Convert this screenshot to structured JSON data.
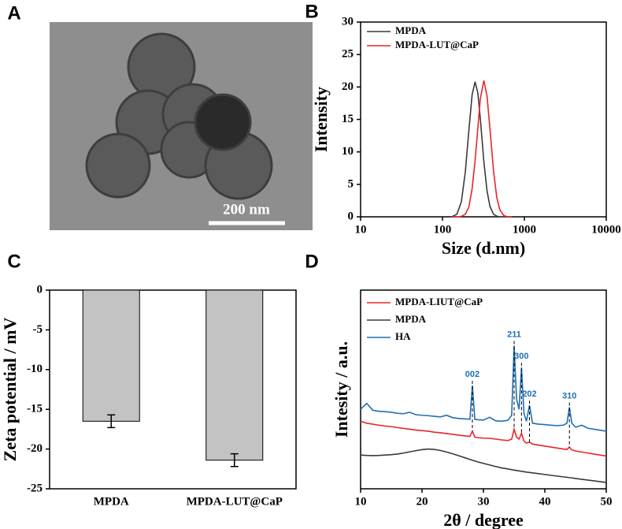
{
  "chart_data": [
    {
      "type": "image",
      "panel": "A",
      "scale_bar": "200 nm"
    },
    {
      "type": "line",
      "panel": "B",
      "xlabel": "Size (d.nm)",
      "ylabel": "Intensity",
      "xscale": "log",
      "xlim": [
        10,
        10000
      ],
      "xticks": [
        10,
        100,
        1000,
        10000
      ],
      "ylim": [
        0,
        30
      ],
      "yticks": [
        0,
        5,
        10,
        15,
        20,
        25,
        30
      ],
      "legend": "upper left",
      "x": [
        130,
        150,
        170,
        190,
        210,
        230,
        250,
        270,
        290,
        320,
        350,
        380,
        420,
        460,
        500,
        560,
        620,
        700
      ],
      "series": [
        {
          "name": "MPDA",
          "color": "#3a3a3a",
          "values": [
            0,
            0.4,
            2.3,
            6.9,
            13.3,
            18.8,
            20.8,
            19.1,
            15.1,
            8.5,
            4.0,
            1.6,
            0.4,
            0.1,
            0,
            0,
            0,
            0
          ]
        },
        {
          "name": "MPDA-LUT@CaP",
          "color": "#e8252a",
          "values": [
            0,
            0,
            0.06,
            0.4,
            1.5,
            4.3,
            8.6,
            13.6,
            18.2,
            21.0,
            18.6,
            13.5,
            7.1,
            3.0,
            1.1,
            0.2,
            0,
            0
          ]
        }
      ]
    },
    {
      "type": "bar",
      "panel": "C",
      "ylabel": "Zeta potential / mV",
      "categories": [
        "MPDA",
        "MPDA-LUT@CaP"
      ],
      "values": [
        -16.5,
        -21.4
      ],
      "errors": [
        0.8,
        0.8
      ],
      "color": "#c3c3c3",
      "ylim": [
        -25,
        0
      ],
      "yticks": [
        0,
        -5,
        -10,
        -15,
        -20,
        -25
      ]
    },
    {
      "type": "line",
      "panel": "D",
      "xlabel": "2θ / degree",
      "ylabel": "Intesity / a.u.",
      "xlim": [
        10,
        50
      ],
      "xticks": [
        10,
        20,
        30,
        40,
        50
      ],
      "ylim": [
        0,
        100
      ],
      "legend": "upper left",
      "x": [
        10,
        11,
        12,
        13,
        14,
        15,
        16,
        17,
        18,
        19,
        20,
        21,
        22,
        23,
        24,
        25,
        26,
        27,
        27.8,
        28.2,
        28.6,
        29,
        30,
        31,
        32,
        33,
        34,
        34.6,
        35,
        35.4,
        35.8,
        36.2,
        36.6,
        37,
        37.5,
        38,
        39,
        40,
        41,
        42,
        43,
        43.6,
        44,
        44.4,
        45,
        46,
        47,
        48,
        49,
        50
      ],
      "series": [
        {
          "name": "MPDA-LIUT@CaP",
          "color": "#e8252a",
          "values": [
            34,
            33,
            32.5,
            32,
            31.6,
            31.3,
            30.8,
            30.4,
            30,
            29.6,
            29.3,
            29,
            28.5,
            28.2,
            27.8,
            27.4,
            27,
            26.6,
            26.4,
            29,
            26,
            25.8,
            25.5,
            25.4,
            25,
            24.6,
            24.3,
            25,
            30,
            26,
            25,
            28,
            24,
            23,
            23.5,
            22.5,
            22,
            21.5,
            21,
            20.5,
            20,
            19.8,
            21,
            19.6,
            19,
            18.5,
            18,
            17.5,
            17,
            16.5
          ]
        },
        {
          "name": "MPDA",
          "color": "#3a3a3a",
          "values": [
            17,
            16.8,
            16.7,
            16.8,
            17,
            17.2,
            17.5,
            18,
            18.6,
            19.2,
            19.7,
            20,
            19.8,
            19.3,
            18.5,
            17.6,
            16.6,
            15.6,
            14.8,
            14.4,
            14,
            13.6,
            12.8,
            12,
            11.2,
            10.5,
            10,
            9.6,
            9.4,
            9.2,
            9,
            8.8,
            8.6,
            8.4,
            8.2,
            8,
            7.6,
            7.2,
            6.8,
            6.4,
            6,
            5.8,
            5.6,
            5.5,
            5.2,
            4.8,
            4.4,
            4,
            3.6,
            3.2
          ]
        },
        {
          "name": "HA",
          "color": "#1f6fb4",
          "values": [
            40,
            43,
            39.5,
            39,
            38.8,
            38.5,
            38,
            37.8,
            38.5,
            37.3,
            37,
            36.8,
            36.5,
            36.2,
            37,
            35.8,
            35.4,
            35.2,
            35,
            52,
            35,
            34.8,
            34.6,
            36,
            34.2,
            34,
            34.5,
            37,
            72,
            45,
            40,
            61,
            38,
            34,
            42,
            33,
            32.5,
            32.3,
            32,
            31.8,
            32,
            33,
            41,
            33,
            31,
            32,
            30.5,
            30,
            29.5,
            29
          ]
        }
      ],
      "annotations": [
        {
          "text": "002",
          "x": 28.2
        },
        {
          "text": "211",
          "x": 35
        },
        {
          "text": "300",
          "x": 36.2
        },
        {
          "text": "202",
          "x": 37.5
        },
        {
          "text": "310",
          "x": 44
        }
      ],
      "annotation_color": "#1f6fb4"
    }
  ]
}
